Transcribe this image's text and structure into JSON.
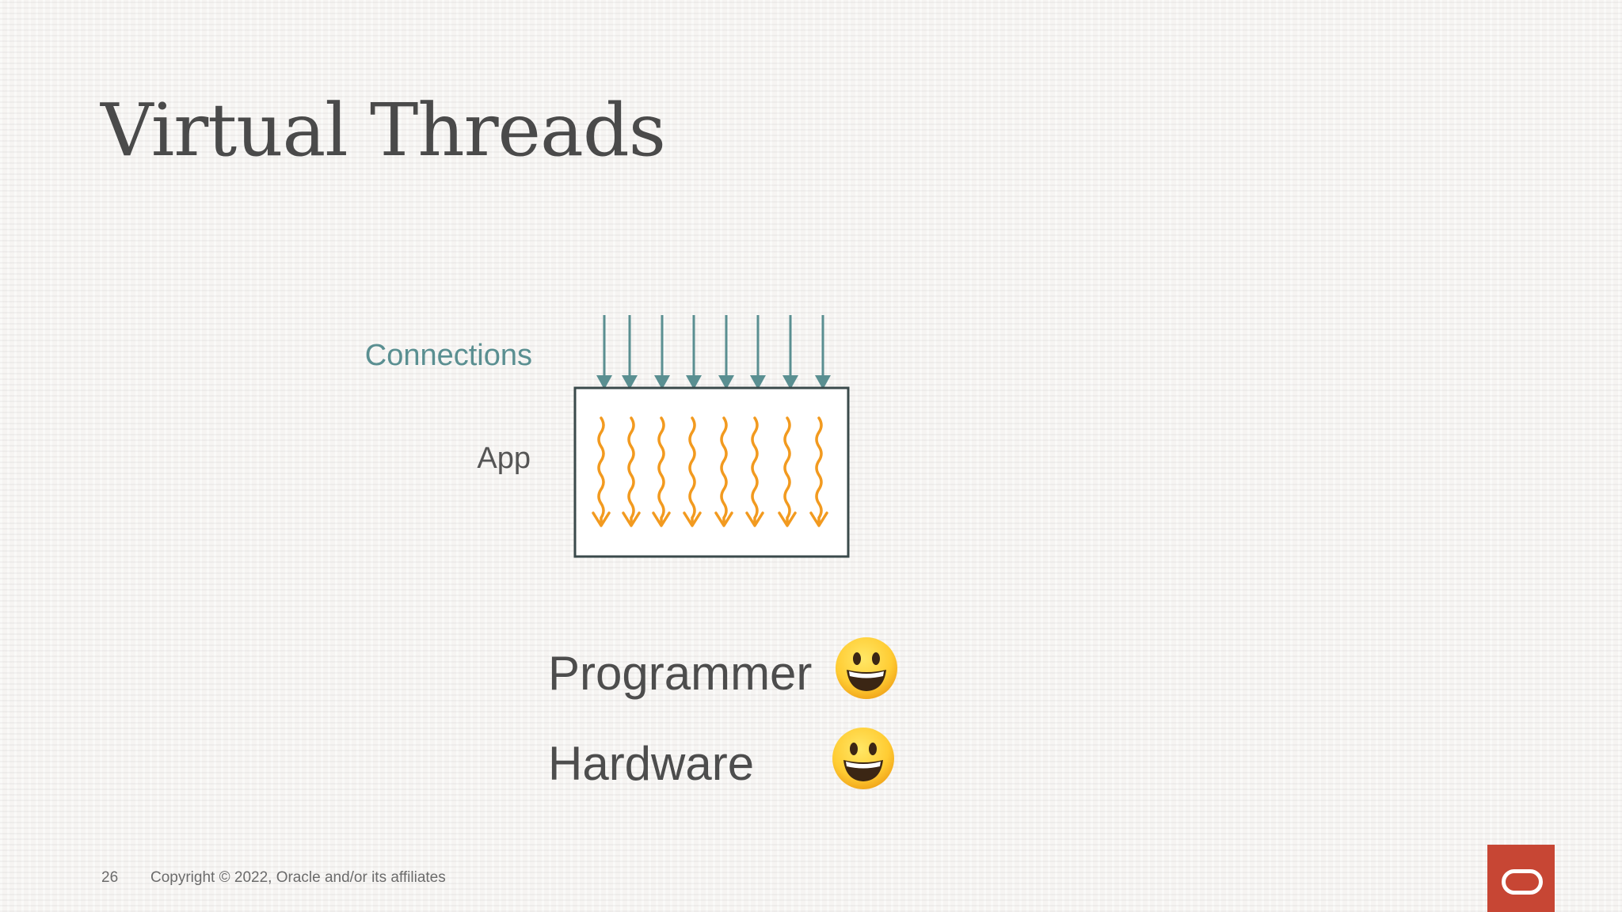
{
  "slide": {
    "title": "Virtual Threads",
    "footer": {
      "page_number": "26",
      "copyright": "Copyright © 2022, Oracle and/or its affiliates"
    },
    "logo": {
      "icon": "oracle-logo-icon",
      "color": "#c74634"
    }
  },
  "diagram": {
    "connections_label": "Connections",
    "app_label": "App",
    "connection_arrow_count": 8,
    "thread_count": 8,
    "colors": {
      "connections": "#5a8f91",
      "box_border": "#3a4a4b",
      "threads": "#f29a1f"
    }
  },
  "ratings": [
    {
      "label": "Programmer",
      "icon": "grinning-face-icon"
    },
    {
      "label": "Hardware",
      "icon": "grinning-face-icon"
    }
  ]
}
